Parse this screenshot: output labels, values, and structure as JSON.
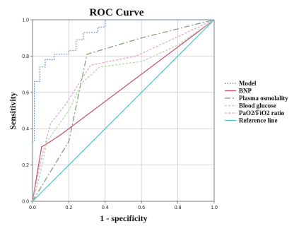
{
  "chart_data": {
    "type": "line",
    "title": "ROC Curve",
    "xlabel": "1 - specificity",
    "ylabel": "Sensitivity",
    "xlim": [
      0,
      1
    ],
    "ylim": [
      0,
      1
    ],
    "xticks": [
      "0.0",
      "0.2",
      "0.4",
      "0.6",
      "0.8",
      "1.0"
    ],
    "yticks": [
      "0.0",
      "0.2",
      "0.4",
      "0.6",
      "0.8",
      "1.0"
    ],
    "grid": true,
    "legend_position": "right",
    "series": [
      {
        "name": "Model",
        "color": "#7b9ad0",
        "dash": "2,1.5",
        "step": true,
        "points": [
          [
            0,
            0
          ],
          [
            0,
            0.33
          ],
          [
            0.01,
            0.33
          ],
          [
            0.01,
            0.66
          ],
          [
            0.04,
            0.66
          ],
          [
            0.04,
            0.74
          ],
          [
            0.07,
            0.74
          ],
          [
            0.07,
            0.78
          ],
          [
            0.12,
            0.78
          ],
          [
            0.12,
            0.81
          ],
          [
            0.2,
            0.81
          ],
          [
            0.2,
            0.83
          ],
          [
            0.24,
            0.83
          ],
          [
            0.24,
            0.89
          ],
          [
            0.28,
            0.89
          ],
          [
            0.28,
            0.93
          ],
          [
            0.36,
            0.93
          ],
          [
            0.36,
            0.96
          ],
          [
            0.4,
            0.96
          ],
          [
            0.4,
            1.0
          ],
          [
            1.0,
            1.0
          ]
        ]
      },
      {
        "name": "BNP",
        "color": "#d04a6a",
        "dash": "",
        "step": false,
        "points": [
          [
            0,
            0
          ],
          [
            0.05,
            0.3
          ],
          [
            0.1,
            0.33
          ],
          [
            0.16,
            0.37
          ],
          [
            1.0,
            1.0
          ]
        ]
      },
      {
        "name": "Plasma osmolality",
        "color": "#7a9a6e",
        "dash": "8,3,2,3",
        "step": false,
        "points": [
          [
            0,
            0
          ],
          [
            0.2,
            0.33
          ],
          [
            0.3,
            0.81
          ],
          [
            0.6,
            0.9
          ],
          [
            1.0,
            1.0
          ]
        ]
      },
      {
        "name": "Blood glucose",
        "color": "#a6dc9a",
        "dash": "3,2",
        "step": false,
        "points": [
          [
            0,
            0
          ],
          [
            0.03,
            0.1
          ],
          [
            0.08,
            0.33
          ],
          [
            0.2,
            0.5
          ],
          [
            0.27,
            0.65
          ],
          [
            0.37,
            0.74
          ],
          [
            0.6,
            0.77
          ],
          [
            0.8,
            0.86
          ],
          [
            1.0,
            1.0
          ]
        ]
      },
      {
        "name": "PaO2/FiO2 ratio",
        "color": "#e8a0c4",
        "dash": "3,2",
        "step": false,
        "points": [
          [
            0,
            0
          ],
          [
            0.04,
            0.2
          ],
          [
            0.1,
            0.43
          ],
          [
            0.18,
            0.53
          ],
          [
            0.32,
            0.75
          ],
          [
            0.57,
            0.8
          ],
          [
            1.0,
            1.0
          ]
        ]
      },
      {
        "name": "Reference line",
        "color": "#4ec3c6",
        "dash": "",
        "step": false,
        "points": [
          [
            0,
            0
          ],
          [
            1,
            1
          ]
        ]
      }
    ]
  }
}
